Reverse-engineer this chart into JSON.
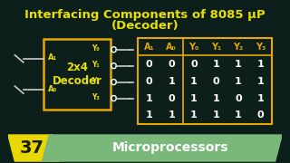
{
  "bg_color": "#0d1f1a",
  "title_line1": "Interfacing Components of 8085 μP",
  "title_line2": "(Decoder)",
  "title_color": "#e8e000",
  "box_color": "#e8a800",
  "box_label_color": "#e8e000",
  "input_labels": [
    "A₁",
    "A₀"
  ],
  "output_labels": [
    "Y₀",
    "Y₁",
    "Y₂",
    "Y₃"
  ],
  "table_header": [
    "A₁",
    "A₀",
    "Y₀",
    "Y₁",
    "Y₂",
    "Y₃"
  ],
  "table_data": [
    [
      0,
      0,
      0,
      1,
      1,
      1
    ],
    [
      0,
      1,
      1,
      0,
      1,
      1
    ],
    [
      1,
      0,
      1,
      1,
      0,
      1
    ],
    [
      1,
      1,
      1,
      1,
      1,
      0
    ]
  ],
  "table_border_color": "#e8a800",
  "table_header_color": "#e8a800",
  "table_data_color": "#ffffff",
  "footer_bg": "#e8d800",
  "footer_num": "37",
  "footer_text_bg": "#7ab87a",
  "footer_text": "Microprocessors",
  "footer_text_color": "#ffffff",
  "wire_color": "#cccccc",
  "circle_color": "#ffffff"
}
